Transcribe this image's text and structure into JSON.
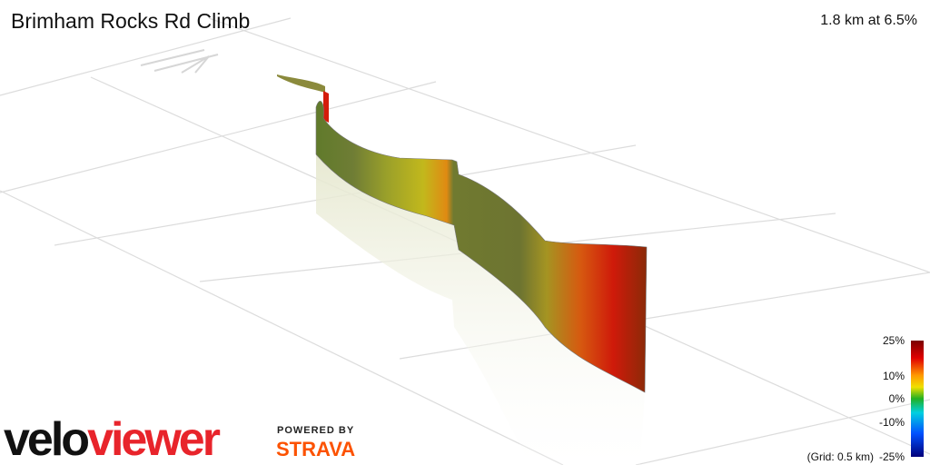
{
  "header": {
    "title": "Brimham Rocks Rd Climb",
    "summary": "1.8 km at 6.5%"
  },
  "colorbar": {
    "labels": [
      "25%",
      "10%",
      "0%",
      "-10%",
      "-25%"
    ],
    "grid_note": "(Grid: 0.5 km)"
  },
  "branding": {
    "logo_velo": "velo",
    "logo_viewer": "viewer",
    "powered_by": "POWERED BY",
    "strava": "STRAVA"
  }
}
